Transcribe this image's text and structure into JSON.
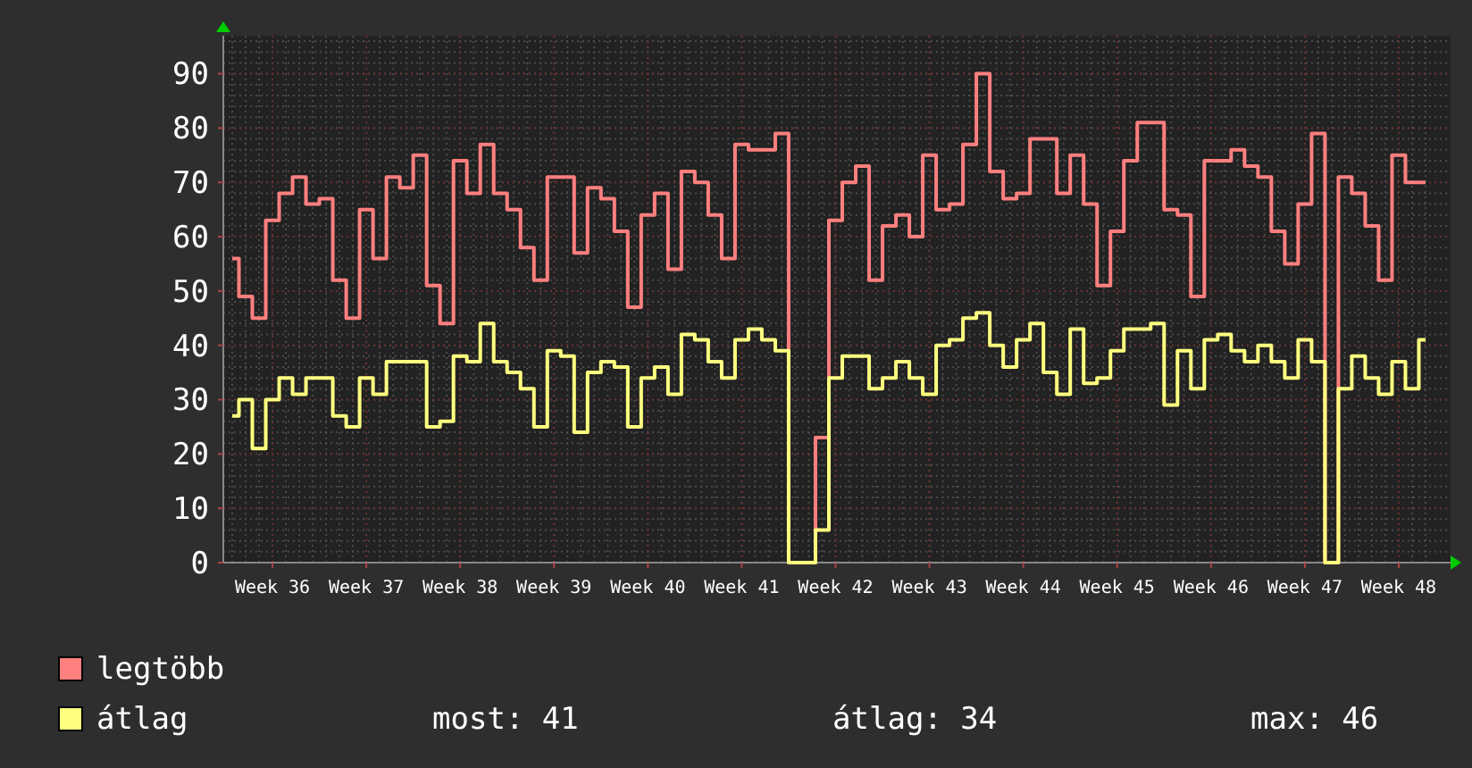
{
  "chart_data": {
    "type": "step",
    "categories": [
      null,
      null,
      null,
      "Week 36",
      null,
      null,
      null,
      null,
      null,
      null,
      "Week 37",
      null,
      null,
      null,
      null,
      null,
      null,
      "Week 38",
      null,
      null,
      null,
      null,
      null,
      null,
      "Week 39",
      null,
      null,
      null,
      null,
      null,
      null,
      "Week 40",
      null,
      null,
      null,
      null,
      null,
      null,
      "Week 41",
      null,
      null,
      null,
      null,
      null,
      null,
      "Week 42",
      null,
      null,
      null,
      null,
      null,
      null,
      "Week 43",
      null,
      null,
      null,
      null,
      null,
      null,
      "Week 44",
      null,
      null,
      null,
      null,
      null,
      null,
      "Week 45",
      null,
      null,
      null,
      null,
      null,
      null,
      "Week 46",
      null,
      null,
      null,
      null,
      null,
      null,
      "Week 47",
      null,
      null,
      null,
      null,
      null,
      null,
      "Week 48",
      null,
      null
    ],
    "series": [
      {
        "name": "legtöbb",
        "color": "#ff7f7f",
        "values": [
          56,
          49,
          45,
          63,
          68,
          71,
          66,
          67,
          52,
          45,
          65,
          56,
          71,
          69,
          75,
          51,
          44,
          74,
          68,
          77,
          68,
          65,
          58,
          52,
          71,
          71,
          57,
          69,
          67,
          61,
          47,
          64,
          68,
          54,
          72,
          70,
          64,
          56,
          77,
          76,
          76,
          79,
          0,
          0,
          23,
          63,
          70,
          73,
          52,
          62,
          64,
          60,
          75,
          65,
          66,
          77,
          90,
          72,
          67,
          68,
          78,
          78,
          68,
          75,
          66,
          51,
          61,
          74,
          81,
          81,
          65,
          64,
          49,
          74,
          74,
          76,
          73,
          71,
          61,
          55,
          66,
          79,
          0,
          71,
          68,
          62,
          52,
          75,
          70,
          70
        ]
      },
      {
        "name": "átlag",
        "color": "#ffff7f",
        "values": [
          27,
          30,
          21,
          30,
          34,
          31,
          34,
          34,
          27,
          25,
          34,
          31,
          37,
          37,
          37,
          25,
          26,
          38,
          37,
          44,
          37,
          35,
          32,
          25,
          39,
          38,
          24,
          35,
          37,
          36,
          25,
          34,
          36,
          31,
          42,
          41,
          37,
          34,
          41,
          43,
          41,
          39,
          0,
          0,
          6,
          34,
          38,
          38,
          32,
          34,
          37,
          34,
          31,
          40,
          41,
          45,
          46,
          40,
          36,
          41,
          44,
          35,
          31,
          43,
          33,
          34,
          39,
          43,
          43,
          44,
          29,
          39,
          32,
          41,
          42,
          39,
          37,
          40,
          37,
          34,
          41,
          37,
          0,
          32,
          38,
          34,
          31,
          37,
          32,
          41
        ]
      }
    ],
    "ylim": [
      0,
      97
    ],
    "yticks": [
      0,
      10,
      20,
      30,
      40,
      50,
      60,
      70,
      80,
      90
    ],
    "grid": true,
    "legend": "bottom",
    "annotations": [
      "most: 41",
      "átlag: 34",
      "max: 46"
    ]
  }
}
